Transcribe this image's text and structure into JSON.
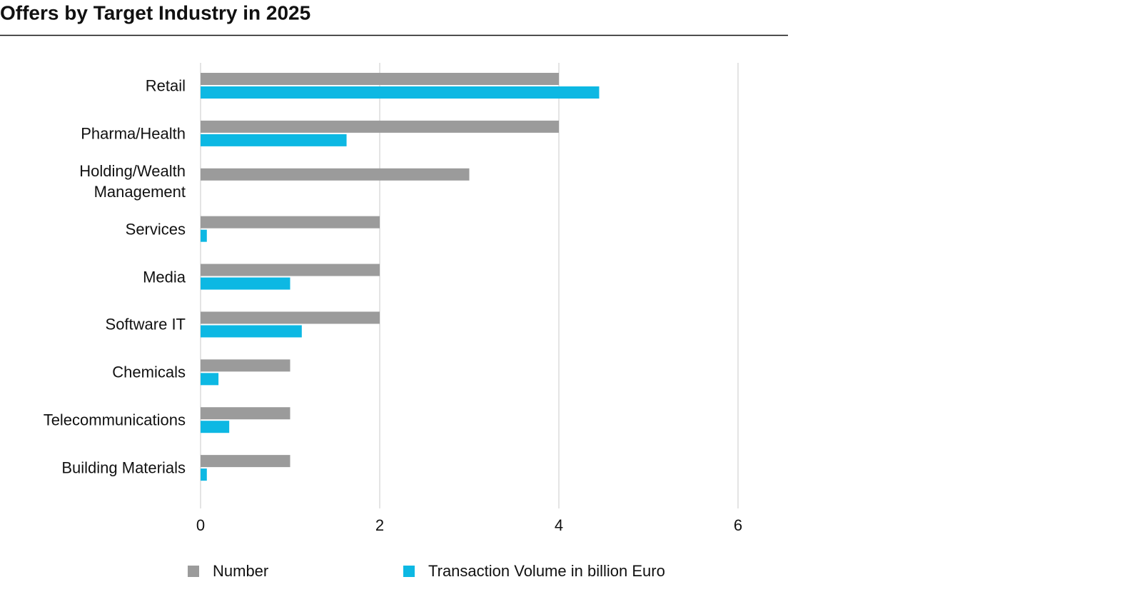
{
  "chart_data": {
    "type": "bar",
    "orientation": "horizontal",
    "title": "Offers by Target Industry in 2025",
    "categories": [
      "Retail",
      "Pharma/Health",
      "Holding/Wealth Management",
      "Services",
      "Media",
      "Software IT",
      "Chemicals",
      "Telecommunications",
      "Building Materials"
    ],
    "series": [
      {
        "name": "Number",
        "color": "#9b9b9b",
        "values": [
          4,
          4,
          3,
          2,
          2,
          2,
          1,
          1,
          1
        ]
      },
      {
        "name": "Transaction Volume in billion Euro",
        "color": "#0db8e3",
        "values": [
          4.45,
          1.63,
          null,
          0.07,
          1.0,
          1.13,
          0.2,
          0.32,
          0.07
        ]
      }
    ],
    "xlim": [
      0,
      6
    ],
    "xticks": [
      0,
      2,
      4,
      6
    ],
    "grid": true,
    "legend": "bottom"
  }
}
